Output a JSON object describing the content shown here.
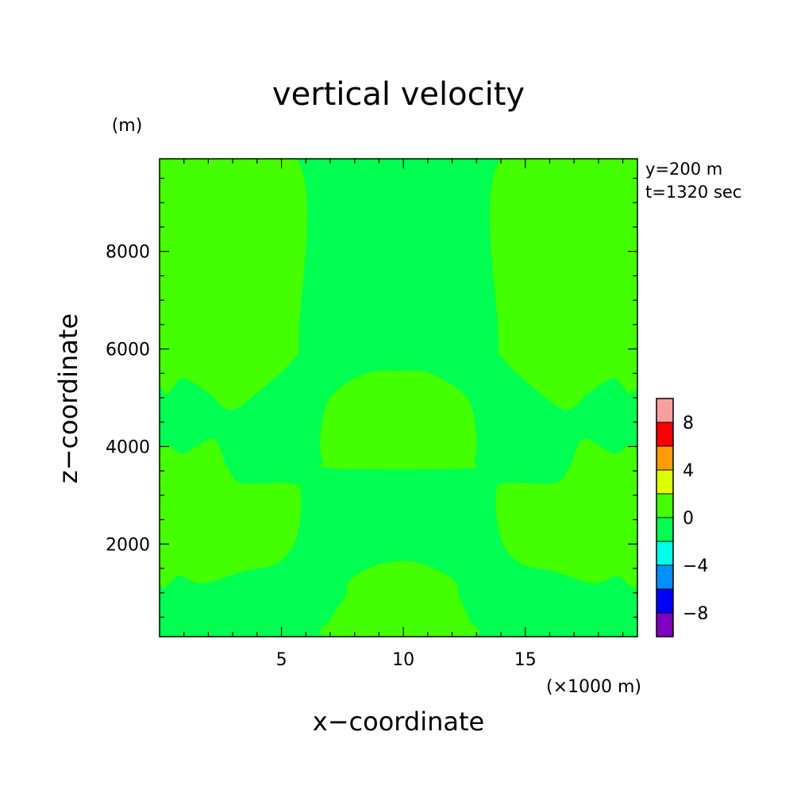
{
  "chart_data": {
    "type": "heatmap",
    "title": "vertical velocity",
    "xlabel": "x−coordinate",
    "ylabel": "z−coordinate",
    "x_unit": "(×1000 m)",
    "y_unit": "(m)",
    "annotations": [
      "y=200 m",
      "t=1320 sec"
    ],
    "xlim": [
      0,
      19.6
    ],
    "ylim": [
      100,
      9900
    ],
    "x_ticks": [
      5,
      10,
      15
    ],
    "x_tick_labels": [
      "5",
      "10",
      "15"
    ],
    "y_ticks": [
      2000,
      4000,
      6000,
      8000
    ],
    "y_tick_labels": [
      "2000",
      "4000",
      "6000",
      "8000"
    ],
    "background_level": [
      -2,
      0
    ],
    "background_color": "#00ff50",
    "regions": [
      {
        "level": [
          0,
          2
        ],
        "color": "#44ff00",
        "outline": [
          [
            0,
            9900
          ],
          [
            5.6,
            9900
          ],
          [
            5.7,
            6300
          ],
          [
            5.5,
            5800
          ],
          [
            4.0,
            5100
          ],
          [
            2.9,
            4750
          ],
          [
            2.0,
            5100
          ],
          [
            1.0,
            5400
          ],
          [
            0,
            5400
          ]
        ]
      },
      {
        "level": [
          0,
          2
        ],
        "color": "#44ff00",
        "outline": [
          [
            19.6,
            9900
          ],
          [
            14.0,
            9900
          ],
          [
            13.9,
            6300
          ],
          [
            14.1,
            5800
          ],
          [
            15.6,
            5100
          ],
          [
            16.7,
            4750
          ],
          [
            17.6,
            5100
          ],
          [
            18.6,
            5400
          ],
          [
            19.6,
            5400
          ]
        ]
      },
      {
        "level": [
          0,
          2
        ],
        "color": "#44ff00",
        "outline": [
          [
            0,
            3850
          ],
          [
            1.0,
            3850
          ],
          [
            2.2,
            4150
          ],
          [
            2.8,
            3550
          ],
          [
            3.4,
            3250
          ],
          [
            5.4,
            3250
          ],
          [
            5.8,
            3000
          ],
          [
            5.6,
            2100
          ],
          [
            4.8,
            1600
          ],
          [
            3.5,
            1450
          ],
          [
            1.8,
            1200
          ],
          [
            0.8,
            1350
          ],
          [
            0,
            1250
          ]
        ]
      },
      {
        "level": [
          0,
          2
        ],
        "color": "#44ff00",
        "outline": [
          [
            19.6,
            3850
          ],
          [
            18.6,
            3850
          ],
          [
            17.4,
            4150
          ],
          [
            16.8,
            3550
          ],
          [
            16.2,
            3250
          ],
          [
            14.2,
            3250
          ],
          [
            13.8,
            3000
          ],
          [
            14.0,
            2100
          ],
          [
            14.8,
            1600
          ],
          [
            16.1,
            1450
          ],
          [
            17.8,
            1200
          ],
          [
            18.8,
            1350
          ],
          [
            19.6,
            1250
          ]
        ]
      },
      {
        "level": [
          0,
          2
        ],
        "color": "#44ff00",
        "outline": [
          [
            6.7,
            3700
          ],
          [
            6.6,
            4200
          ],
          [
            7.0,
            5000
          ],
          [
            8.5,
            5500
          ],
          [
            10.0,
            5550
          ],
          [
            11.1,
            5500
          ],
          [
            12.6,
            5000
          ],
          [
            13.0,
            4200
          ],
          [
            12.9,
            3700
          ],
          [
            12.5,
            3550
          ],
          [
            7.1,
            3550
          ]
        ]
      },
      {
        "level": [
          0,
          2
        ],
        "color": "#44ff00",
        "outline": [
          [
            7.0,
            100
          ],
          [
            7.0,
            450
          ],
          [
            7.6,
            900
          ],
          [
            7.8,
            1250
          ],
          [
            8.8,
            1550
          ],
          [
            10.0,
            1650
          ],
          [
            11.0,
            1550
          ],
          [
            12.1,
            1250
          ],
          [
            12.3,
            900
          ],
          [
            12.7,
            450
          ],
          [
            12.7,
            100
          ]
        ]
      }
    ],
    "colorbar": {
      "tick_labels": [
        "8",
        "4",
        "0",
        "−4",
        "−8"
      ],
      "tick_values": [
        8,
        4,
        0,
        -4,
        -8
      ],
      "bins": [
        {
          "range": [
            8,
            10
          ],
          "color": "#f8a0a0"
        },
        {
          "range": [
            6,
            8
          ],
          "color": "#ff0000"
        },
        {
          "range": [
            4,
            6
          ],
          "color": "#ff9c00"
        },
        {
          "range": [
            2,
            4
          ],
          "color": "#dcff00"
        },
        {
          "range": [
            0,
            2
          ],
          "color": "#44ff00"
        },
        {
          "range": [
            -2,
            0
          ],
          "color": "#00ff50"
        },
        {
          "range": [
            -4,
            -2
          ],
          "color": "#00ffe8"
        },
        {
          "range": [
            -6,
            -4
          ],
          "color": "#0090ff"
        },
        {
          "range": [
            -8,
            -6
          ],
          "color": "#0000ff"
        },
        {
          "range": [
            -10,
            -8
          ],
          "color": "#8000c0"
        }
      ]
    }
  }
}
